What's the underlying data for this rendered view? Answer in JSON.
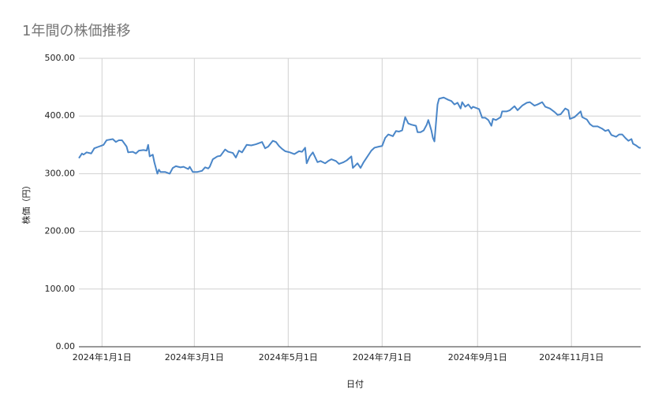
{
  "chart_data": {
    "type": "line",
    "title": "1年間の株価推移",
    "x_label": "日付",
    "y_label": "株価（円）",
    "grid": true,
    "xlim": [
      "2023-12-17",
      "2024-12-16"
    ],
    "xticks": [
      {
        "value": "2024-01-01",
        "label": "2024年1月1日"
      },
      {
        "value": "2024-03-01",
        "label": "2024年3月1日"
      },
      {
        "value": "2024-05-01",
        "label": "2024年5月1日"
      },
      {
        "value": "2024-07-01",
        "label": "2024年7月1日"
      },
      {
        "value": "2024-09-01",
        "label": "2024年9月1日"
      },
      {
        "value": "2024-11-01",
        "label": "2024年11月1日"
      }
    ],
    "ylim": [
      0,
      500
    ],
    "yticks": [
      {
        "value": 0,
        "label": "0.00"
      },
      {
        "value": 100,
        "label": "100.00"
      },
      {
        "value": 200,
        "label": "200.00"
      },
      {
        "value": 300,
        "label": "300.00"
      },
      {
        "value": 400,
        "label": "400.00"
      },
      {
        "value": 500,
        "label": "500.00"
      }
    ],
    "x": [
      "2023-12-17",
      "2023-12-19",
      "2023-12-20",
      "2023-12-22",
      "2023-12-25",
      "2023-12-27",
      "2023-12-30",
      "2024-01-02",
      "2024-01-04",
      "2024-01-08",
      "2024-01-10",
      "2024-01-12",
      "2024-01-14",
      "2024-01-17",
      "2024-01-18",
      "2024-01-21",
      "2024-01-23",
      "2024-01-25",
      "2024-01-28",
      "2024-01-30",
      "2024-01-31",
      "2024-02-01",
      "2024-02-03",
      "2024-02-04",
      "2024-02-06",
      "2024-02-07",
      "2024-02-08",
      "2024-02-11",
      "2024-02-14",
      "2024-02-16",
      "2024-02-18",
      "2024-02-21",
      "2024-02-23",
      "2024-02-26",
      "2024-02-27",
      "2024-02-29",
      "2024-03-03",
      "2024-03-06",
      "2024-03-08",
      "2024-03-10",
      "2024-03-11",
      "2024-03-13",
      "2024-03-16",
      "2024-03-18",
      "2024-03-21",
      "2024-03-23",
      "2024-03-26",
      "2024-03-28",
      "2024-03-30",
      "2024-04-01",
      "2024-04-04",
      "2024-04-07",
      "2024-04-10",
      "2024-04-14",
      "2024-04-16",
      "2024-04-18",
      "2024-04-21",
      "2024-04-23",
      "2024-04-25",
      "2024-04-27",
      "2024-04-29",
      "2024-05-02",
      "2024-05-05",
      "2024-05-08",
      "2024-05-10",
      "2024-05-12",
      "2024-05-13",
      "2024-05-15",
      "2024-05-17",
      "2024-05-20",
      "2024-05-22",
      "2024-05-25",
      "2024-05-27",
      "2024-05-29",
      "2024-06-01",
      "2024-06-03",
      "2024-06-06",
      "2024-06-08",
      "2024-06-11",
      "2024-06-12",
      "2024-06-15",
      "2024-06-17",
      "2024-06-19",
      "2024-06-21",
      "2024-06-24",
      "2024-06-26",
      "2024-06-29",
      "2024-07-01",
      "2024-07-03",
      "2024-07-05",
      "2024-07-08",
      "2024-07-10",
      "2024-07-12",
      "2024-07-14",
      "2024-07-16",
      "2024-07-18",
      "2024-07-20",
      "2024-07-23",
      "2024-07-24",
      "2024-07-26",
      "2024-07-28",
      "2024-07-30",
      "2024-07-31",
      "2024-08-02",
      "2024-08-03",
      "2024-08-04",
      "2024-08-06",
      "2024-08-07",
      "2024-08-10",
      "2024-08-13",
      "2024-08-15",
      "2024-08-17",
      "2024-08-19",
      "2024-08-21",
      "2024-08-22",
      "2024-08-24",
      "2024-08-26",
      "2024-08-28",
      "2024-08-29",
      "2024-09-01",
      "2024-09-02",
      "2024-09-04",
      "2024-09-06",
      "2024-09-08",
      "2024-09-10",
      "2024-09-11",
      "2024-09-13",
      "2024-09-16",
      "2024-09-17",
      "2024-09-20",
      "2024-09-22",
      "2024-09-25",
      "2024-09-27",
      "2024-09-30",
      "2024-10-03",
      "2024-10-05",
      "2024-10-08",
      "2024-10-10",
      "2024-10-13",
      "2024-10-15",
      "2024-10-18",
      "2024-10-21",
      "2024-10-23",
      "2024-10-25",
      "2024-10-28",
      "2024-10-30",
      "2024-10-31",
      "2024-11-03",
      "2024-11-05",
      "2024-11-07",
      "2024-11-08",
      "2024-11-11",
      "2024-11-13",
      "2024-11-15",
      "2024-11-18",
      "2024-11-21",
      "2024-11-23",
      "2024-11-25",
      "2024-11-27",
      "2024-11-30",
      "2024-12-02",
      "2024-12-04",
      "2024-12-06",
      "2024-12-08",
      "2024-12-10",
      "2024-12-11",
      "2024-12-13",
      "2024-12-15",
      "2024-12-16"
    ],
    "series": [
      {
        "name": "株価",
        "color": "#4a86c8",
        "values": [
          327,
          335,
          333,
          337,
          335,
          344,
          347,
          350,
          358,
          360,
          355,
          358,
          358,
          347,
          337,
          338,
          335,
          340,
          341,
          340,
          350,
          330,
          333,
          320,
          300,
          307,
          303,
          303,
          300,
          310,
          313,
          311,
          312,
          308,
          312,
          303,
          303,
          305,
          311,
          309,
          312,
          325,
          330,
          331,
          342,
          338,
          336,
          328,
          340,
          337,
          350,
          349,
          351,
          355,
          344,
          347,
          357,
          355,
          348,
          343,
          339,
          337,
          334,
          339,
          338,
          345,
          318,
          330,
          337,
          320,
          322,
          318,
          322,
          325,
          322,
          317,
          320,
          323,
          330,
          310,
          318,
          310,
          320,
          328,
          340,
          345,
          347,
          348,
          362,
          368,
          365,
          374,
          373,
          375,
          398,
          387,
          385,
          383,
          372,
          372,
          375,
          385,
          393,
          375,
          362,
          356,
          420,
          430,
          432,
          428,
          426,
          420,
          423,
          413,
          424,
          416,
          420,
          413,
          416,
          413,
          412,
          397,
          397,
          393,
          383,
          395,
          393,
          398,
          408,
          408,
          410,
          417,
          410,
          418,
          423,
          424,
          418,
          420,
          424,
          416,
          413,
          407,
          402,
          403,
          413,
          410,
          395,
          398,
          403,
          408,
          398,
          394,
          386,
          382,
          382,
          378,
          374,
          376,
          367,
          364,
          368,
          368,
          362,
          357,
          360,
          352,
          349,
          345,
          345
        ]
      }
    ]
  }
}
